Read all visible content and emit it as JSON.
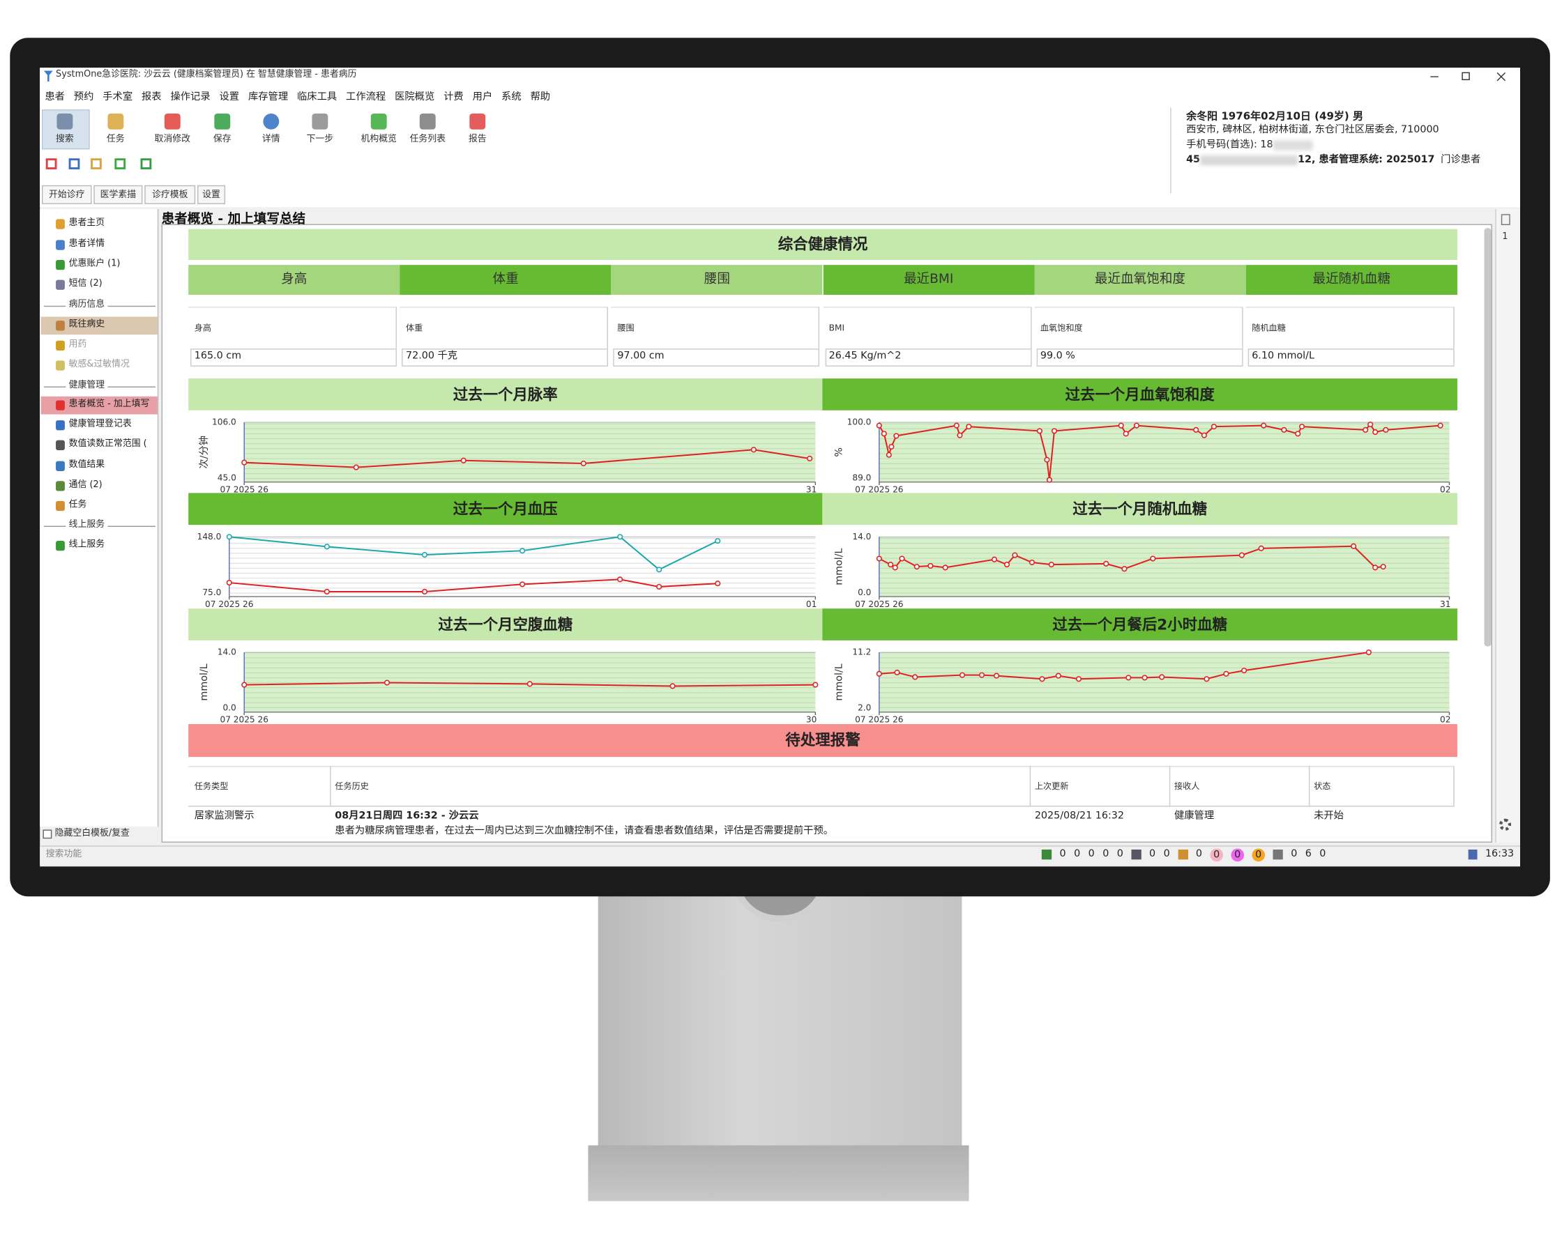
{
  "window": {
    "title": "SystmOne急诊医院: 沙云云 (健康档案管理员) 在 智慧健康管理 - 患者病历",
    "menu": [
      "患者",
      "预约",
      "手术室",
      "报表",
      "操作记录",
      "设置",
      "库存管理",
      "临床工具",
      "工作流程",
      "医院概览",
      "计费",
      "用户",
      "系统",
      "帮助"
    ],
    "toolbar": [
      "搜索",
      "任务",
      "取消修改",
      "保存",
      "详情",
      "下一步",
      "机构概览",
      "任务列表",
      "报告"
    ],
    "tabs": [
      "开始诊疗",
      "医学素描",
      "诊疗模板",
      "设置"
    ],
    "patient": {
      "name_line": "余冬阳 1976年02月10日 (49岁) 男",
      "address": "西安市, 碑林区, 柏树林街道, 东仓门社区居委会, 710000",
      "phone": "手机号码(首选): 18",
      "id_prefix": "45",
      "id_suffix": "12, 患者管理系统: 2025017",
      "patient_type": "门诊患者"
    },
    "sidebar": [
      {
        "label": "患者主页"
      },
      {
        "label": "患者详情"
      },
      {
        "label": "优惠账户 (1)"
      },
      {
        "label": "短信 (2)"
      },
      {
        "label": "病历信息",
        "section": true
      },
      {
        "label": "既往病史",
        "selected": true
      },
      {
        "label": "用药",
        "disabled": true
      },
      {
        "label": "敏感&过敏情况",
        "disabled": true
      },
      {
        "label": "健康管理",
        "section": true
      },
      {
        "label": "患者概览 - 加上填写",
        "selected": true,
        "alert": true
      },
      {
        "label": "健康管理登记表"
      },
      {
        "label": "数值读数正常范围 ("
      },
      {
        "label": "数值结果"
      },
      {
        "label": "通信 (2)"
      },
      {
        "label": "任务"
      },
      {
        "label": "线上服务",
        "section": true
      },
      {
        "label": "线上服务"
      }
    ],
    "hide_blank": "隐藏空白模板/复查",
    "panel_title": "患者概览 - 加上填写总结",
    "search": "搜索功能",
    "status_counts": [
      [
        0,
        0,
        0,
        0,
        0
      ],
      [
        0,
        0
      ],
      [
        0
      ],
      [
        0,
        0,
        0
      ],
      [
        0,
        6,
        0
      ]
    ],
    "time": "16:33",
    "page_number": 1
  },
  "overview": {
    "title": "综合健康情况",
    "metrics": [
      "身高",
      "体重",
      "腰围",
      "最近BMI",
      "最近血氧饱和度",
      "最近随机血糖"
    ],
    "fields": [
      {
        "label": "身高",
        "value": "165.0 cm"
      },
      {
        "label": "体重",
        "value": "72.00 千克"
      },
      {
        "label": "腰围",
        "value": "97.00 cm"
      },
      {
        "label": "BMI",
        "value": "26.45 Kg/m^2"
      },
      {
        "label": "血氧饱和度",
        "value": "99.0 %"
      },
      {
        "label": "随机血糖",
        "value": "6.10 mmol/L"
      }
    ]
  },
  "chart_data": [
    {
      "type": "line",
      "title": "过去一个月脉率",
      "ylabel": "次/分钟",
      "x": [
        0,
        0.98,
        1.92,
        2.97,
        4.46,
        4.95
      ],
      "xlim": [
        0,
        5
      ],
      "xticks": [
        {
          "value": 0,
          "label": "07 2025 26"
        },
        {
          "value": 5,
          "label": "31"
        }
      ],
      "ylim": [
        45,
        106
      ],
      "yticks": [
        {
          "value": 45,
          "label": "45.0"
        },
        {
          "value": 106,
          "label": "106.0"
        }
      ],
      "series": [
        {
          "color": "#e02020",
          "values": [
            65,
            60,
            67,
            64,
            78,
            69
          ]
        }
      ]
    },
    {
      "type": "line",
      "title": "过去一个月血氧饱和度",
      "ylabel": "%",
      "x": [
        0,
        0.06,
        0.12,
        0.15,
        0.21,
        0.95,
        0.99,
        1.1,
        1.97,
        2.06,
        2.09,
        2.15,
        2.97,
        3.03,
        3.16,
        3.89,
        3.99,
        4.11,
        4.72,
        4.97,
        5.14,
        5.19,
        5.97,
        6.03,
        6.09,
        6.22,
        6.89
      ],
      "xlim": [
        0,
        7
      ],
      "xticks": [
        {
          "value": 0,
          "label": "07 2025 26"
        },
        {
          "value": 7,
          "label": "02"
        }
      ],
      "ylim": [
        89,
        100
      ],
      "yticks": [
        {
          "value": 89,
          "label": "89.0"
        },
        {
          "value": 100,
          "label": "100.0"
        }
      ],
      "series": [
        {
          "color": "#e02020",
          "values": [
            99.4,
            97.9,
            94,
            95.5,
            97.5,
            99.4,
            97.6,
            99.2,
            98.4,
            93.1,
            89.4,
            98.4,
            99.4,
            97.9,
            99.4,
            98.6,
            97.6,
            99.2,
            99.4,
            98.6,
            97.9,
            99.2,
            98.6,
            99.6,
            98.2,
            98.6,
            99.4
          ]
        }
      ]
    },
    {
      "type": "line",
      "title": "过去一个月血压",
      "x": [
        0,
        1,
        2,
        3,
        4,
        4.4,
        5
      ],
      "xlim": [
        0,
        6
      ],
      "xticks": [
        {
          "value": 0,
          "label": "07 2025 26"
        },
        {
          "value": 6,
          "label": "01"
        }
      ],
      "ylim": [
        75,
        148
      ],
      "yticks": [
        {
          "value": 75,
          "label": "75.0"
        },
        {
          "value": 148,
          "label": "148.0"
        }
      ],
      "series": [
        {
          "color": "#1aa8a8",
          "values": [
            148,
            136,
            126,
            131,
            148,
            108,
            143
          ]
        },
        {
          "color": "#e02020",
          "values": [
            92,
            81,
            81,
            90,
            96,
            87,
            91
          ]
        }
      ]
    },
    {
      "type": "line",
      "title": "过去一个月随机血糖",
      "ylabel": "mmol/L",
      "x": [
        0,
        0.1,
        0.14,
        0.2,
        0.33,
        0.45,
        0.58,
        1.01,
        1.12,
        1.19,
        1.34,
        1.51,
        1.99,
        2.15,
        2.4,
        3.18,
        3.35,
        4.16,
        4.35,
        4.42
      ],
      "xlim": [
        0,
        5
      ],
      "xticks": [
        {
          "value": 0,
          "label": "07 2025 26"
        },
        {
          "value": 5,
          "label": "31"
        }
      ],
      "ylim": [
        0,
        14
      ],
      "yticks": [
        {
          "value": 0,
          "label": "0.0"
        },
        {
          "value": 14,
          "label": "14.0"
        }
      ],
      "series": [
        {
          "color": "#e02020",
          "values": [
            8.9,
            7.5,
            6.8,
            8.9,
            7,
            7.2,
            6.8,
            8.7,
            7.5,
            9.7,
            8,
            7.5,
            7.7,
            6.5,
            8.9,
            9.7,
            11.3,
            11.8,
            6.8,
            7
          ]
        }
      ]
    },
    {
      "type": "line",
      "title": "过去一个月空腹血糖",
      "ylabel": "mmol/L",
      "x": [
        0,
        1,
        2,
        3,
        4
      ],
      "xlim": [
        0,
        4
      ],
      "xticks": [
        {
          "value": 0,
          "label": "07 2025 26"
        },
        {
          "value": 4,
          "label": "30"
        }
      ],
      "ylim": [
        0,
        14
      ],
      "yticks": [
        {
          "value": 0,
          "label": "0.0"
        },
        {
          "value": 14,
          "label": "14.0"
        }
      ],
      "series": [
        {
          "color": "#e02020",
          "values": [
            6.4,
            6.9,
            6.6,
            6.1,
            6.4
          ]
        }
      ]
    },
    {
      "type": "line",
      "title": "过去一个月餐后2小时血糖",
      "ylabel": "mmol/L",
      "x": [
        0,
        0.22,
        0.44,
        1.02,
        1.26,
        1.44,
        2,
        2.2,
        2.45,
        3.06,
        3.26,
        3.47,
        4.02,
        4.26,
        4.48,
        6.01
      ],
      "xlim": [
        0,
        7
      ],
      "xticks": [
        {
          "value": 0,
          "label": "07 2025 26"
        },
        {
          "value": 7,
          "label": "02"
        }
      ],
      "ylim": [
        2,
        11.2
      ],
      "yticks": [
        {
          "value": 2,
          "label": "2.0"
        },
        {
          "value": 11.2,
          "label": "11.2"
        }
      ],
      "series": [
        {
          "color": "#e02020",
          "values": [
            7.9,
            8.1,
            7.4,
            7.7,
            7.7,
            7.6,
            7.1,
            7.6,
            7.1,
            7.3,
            7.3,
            7.4,
            7.1,
            7.9,
            8.4,
            11.2
          ]
        }
      ]
    }
  ],
  "alerts": {
    "title": "待处理报警",
    "columns": [
      "任务类型",
      "任务历史",
      "上次更新",
      "接收人",
      "状态"
    ],
    "rows": [
      {
        "type": "居家监测警示",
        "history_title": "08月21日周四 16:32 - 沙云云",
        "history_text": "患者为糖尿病管理患者，在过去一周内已达到三次血糖控制不佳，请查看患者数值结果，评估是否需要提前干预。",
        "updated": "2025/08/21 16:32",
        "recipient": "健康管理",
        "status": "未开始"
      }
    ]
  }
}
